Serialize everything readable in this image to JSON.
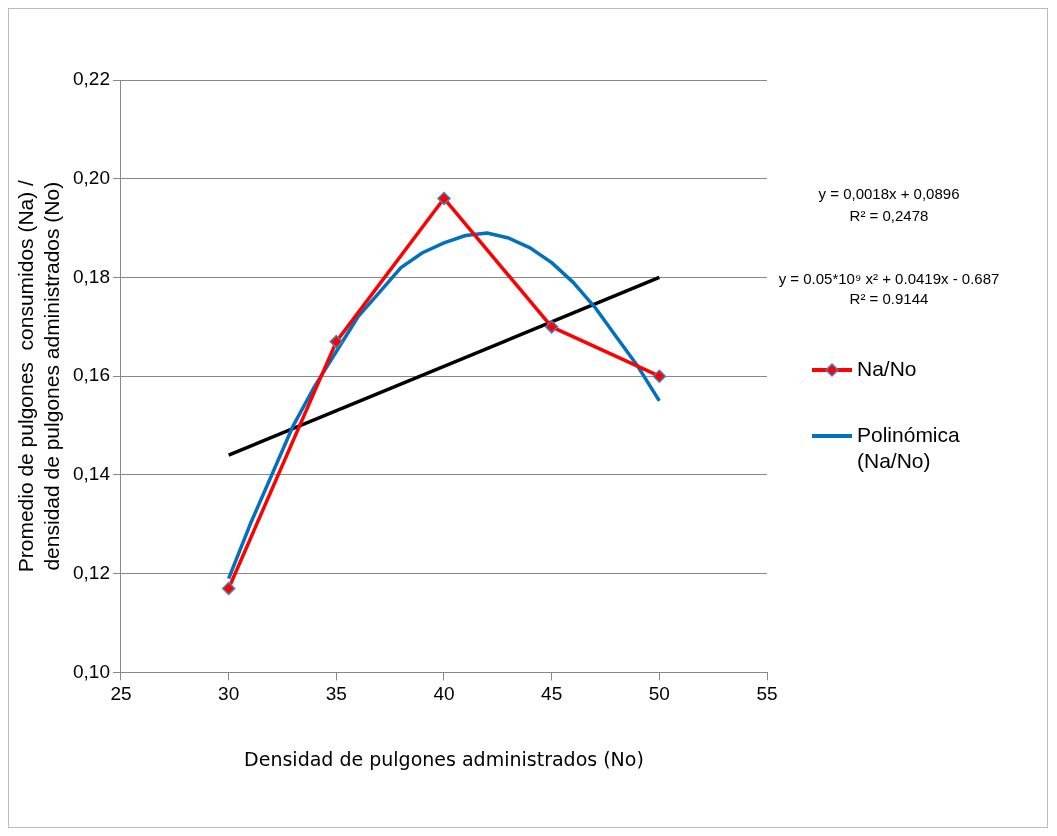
{
  "chart_data": {
    "type": "line",
    "xlabel": "Densidad de pulgones administrados (No)",
    "ylabel": "Promedio de pulgones  consumidos (Na) / densidad de pulgones administrados (No)",
    "xlim": [
      25,
      55
    ],
    "xticks": [
      25,
      30,
      35,
      40,
      45,
      50,
      55
    ],
    "ylim": [
      0.1,
      0.22
    ],
    "yticks": [
      {
        "value": 0.1,
        "label": "0,10"
      },
      {
        "value": 0.12,
        "label": "0,12"
      },
      {
        "value": 0.14,
        "label": "0,14"
      },
      {
        "value": 0.16,
        "label": "0,16"
      },
      {
        "value": 0.18,
        "label": "0,18"
      },
      {
        "value": 0.2,
        "label": "0,20"
      },
      {
        "value": 0.22,
        "label": "0,22"
      }
    ],
    "grid": "y",
    "legend": "right",
    "series": [
      {
        "name": "Na/No",
        "color": "#ff0000",
        "marker": "diamond",
        "x": [
          30,
          35,
          40,
          45,
          50
        ],
        "values": [
          0.117,
          0.167,
          0.196,
          0.17,
          0.16
        ]
      },
      {
        "name": "Polinómica (Na/No)",
        "color": "#0070c0",
        "marker": "none",
        "x": [
          30,
          31,
          32,
          33,
          34,
          35,
          36,
          37,
          38,
          39,
          40,
          41,
          42,
          43,
          44,
          45,
          46,
          47,
          48,
          49,
          50
        ],
        "values": [
          0.119,
          0.13,
          0.14,
          0.15,
          0.158,
          0.165,
          0.172,
          0.177,
          0.182,
          0.185,
          0.187,
          0.1885,
          0.189,
          0.188,
          0.186,
          0.183,
          0.179,
          0.174,
          0.168,
          0.162,
          0.155
        ]
      },
      {
        "color": "#000000",
        "marker": "none",
        "x": [
          30,
          50
        ],
        "values": [
          0.144,
          0.18
        ]
      }
    ],
    "annotations": [
      "y = 0,0018x + 0,0896",
      "R² = 0,2478",
      "y = 0.05*10⁹ x² + 0.0419x - 0.687",
      "R² = 0.9144"
    ]
  }
}
